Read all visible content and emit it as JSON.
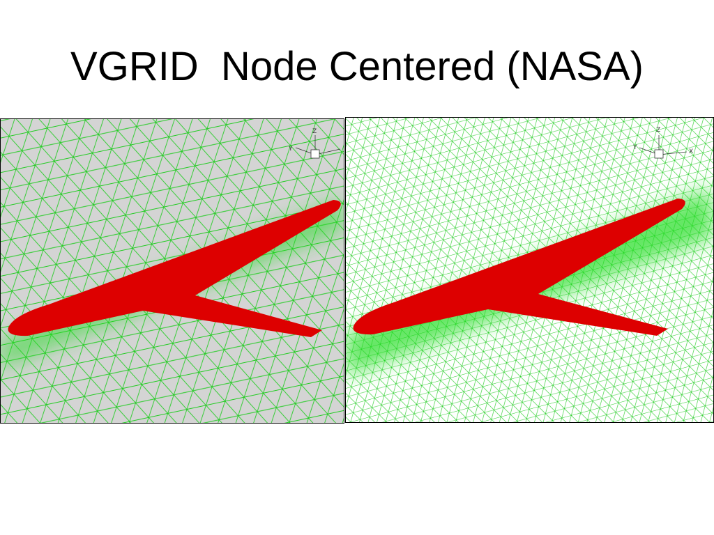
{
  "title": "VGRID  Node Centered (NASA)",
  "panels": [
    {
      "axis_labels": [
        "Z",
        "Y"
      ]
    },
    {
      "axis_labels": [
        "Z",
        "Y",
        "X"
      ]
    }
  ]
}
